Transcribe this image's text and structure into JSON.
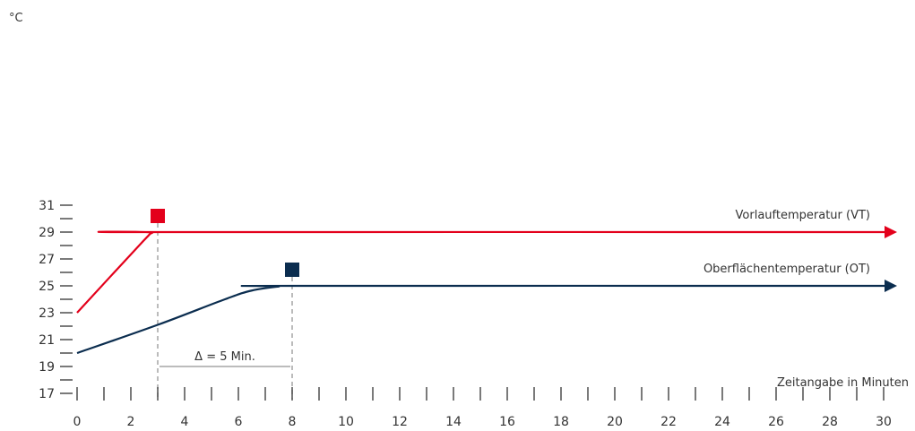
{
  "chart_data": {
    "type": "line",
    "ylabel": "°C",
    "xlabel": "Zeitangabe in Minuten",
    "ylim": [
      17,
      31
    ],
    "xlim": [
      0,
      30
    ],
    "y_major_ticks": [
      17,
      19,
      21,
      23,
      25,
      27,
      29,
      31
    ],
    "y_minor_ticks": [
      18,
      20,
      22,
      24,
      26,
      28,
      30
    ],
    "x_major_ticks": [
      0,
      2,
      4,
      6,
      8,
      10,
      12,
      14,
      16,
      18,
      20,
      22,
      24,
      26,
      28,
      30
    ],
    "x_minor_ticks": [
      1,
      3,
      5,
      7,
      9,
      11,
      13,
      15,
      17,
      19,
      21,
      23,
      25,
      27,
      29
    ],
    "grid": false,
    "series": [
      {
        "name": "Vorlauftemperatur (VT)",
        "color": "#e3001b",
        "x": [
          0,
          2.4,
          2.8,
          3,
          30.5
        ],
        "y": [
          23,
          28.2,
          28.95,
          29,
          29
        ]
      },
      {
        "name": "Oberflächentemperatur (OT)",
        "color": "#0b2d4f",
        "x": [
          0,
          3,
          5.5,
          6.5,
          7.5,
          8,
          30.5
        ],
        "y": [
          20,
          22.1,
          24.0,
          24.65,
          24.95,
          25,
          25
        ]
      }
    ],
    "markers": [
      {
        "series": "Vorlauftemperatur (VT)",
        "x": 3,
        "y": 30.2,
        "color": "#e3001b"
      },
      {
        "series": "Oberflächentemperatur (OT)",
        "x": 8,
        "y": 26.2,
        "color": "#0b2d4f"
      }
    ],
    "reference_lines": [
      {
        "x": 3,
        "style": "dashed",
        "color": "#9e9e9e"
      },
      {
        "x": 8,
        "style": "dashed",
        "color": "#9e9e9e"
      }
    ],
    "annotations": [
      {
        "text": "Δ = 5 Min.",
        "x_from": 3,
        "x_to": 8,
        "y": 19
      }
    ]
  }
}
